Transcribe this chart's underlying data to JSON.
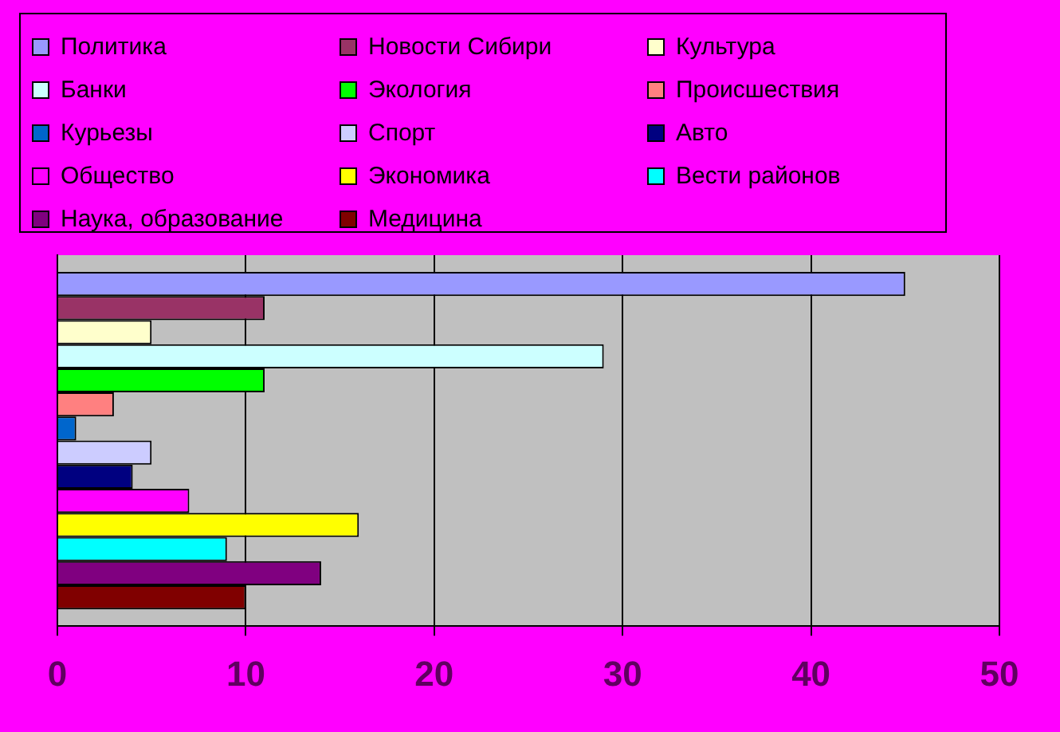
{
  "chart_data": {
    "type": "bar",
    "orientation": "horizontal",
    "categories": [
      null
    ],
    "series": [
      {
        "name": "Политика",
        "color": "#9999ff",
        "values": [
          45
        ]
      },
      {
        "name": "Новости Сибири",
        "color": "#993366",
        "values": [
          11
        ]
      },
      {
        "name": "Культура",
        "color": "#ffffcc",
        "values": [
          5
        ]
      },
      {
        "name": "Банки",
        "color": "#ccffff",
        "values": [
          29
        ]
      },
      {
        "name": "Экология",
        "color": "#00ff00",
        "values": [
          11
        ]
      },
      {
        "name": "Происшествия",
        "color": "#ff8080",
        "values": [
          3
        ]
      },
      {
        "name": "Курьезы",
        "color": "#0066cc",
        "values": [
          1
        ]
      },
      {
        "name": "Спорт",
        "color": "#ccccff",
        "values": [
          5
        ]
      },
      {
        "name": "Авто",
        "color": "#000080",
        "values": [
          4
        ]
      },
      {
        "name": "Общество",
        "color": "#ff00ff",
        "values": [
          7
        ]
      },
      {
        "name": "Экономика",
        "color": "#ffff00",
        "values": [
          16
        ]
      },
      {
        "name": "Вести районов",
        "color": "#00ffff",
        "values": [
          9
        ]
      },
      {
        "name": "Наука, образование",
        "color": "#800080",
        "values": [
          14
        ]
      },
      {
        "name": "Медицина",
        "color": "#800000",
        "values": [
          10
        ]
      }
    ],
    "xlim": [
      0,
      50
    ],
    "xticks": [
      0,
      10,
      20,
      30,
      40,
      50
    ],
    "grid": "x",
    "legend": "top",
    "tick_labels": "x"
  }
}
